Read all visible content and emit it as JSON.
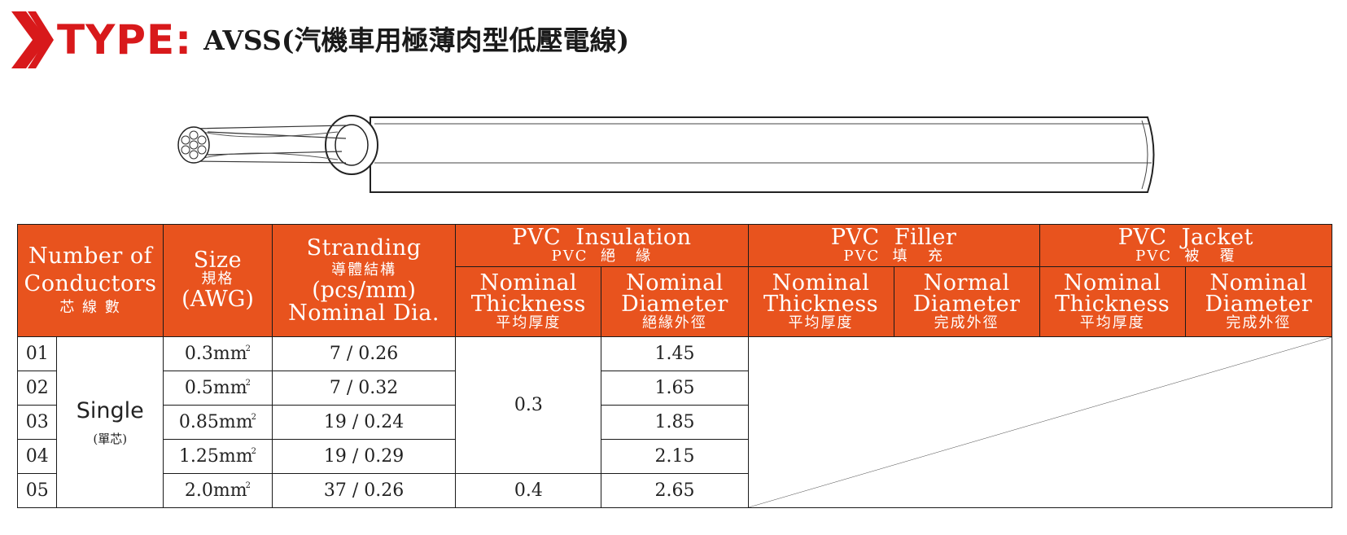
{
  "title": {
    "prefix": "TYPE:",
    "name": "AVSS(汽機車用極薄肉型低壓電線)"
  },
  "colors": {
    "accent_red": "#d8191b",
    "header_orange": "#e8531e"
  },
  "icons": {
    "title_marker": "double-chevron-icon",
    "cable": "cable-illustration"
  },
  "table": {
    "headers": {
      "conductors": {
        "en_line1": "Number of",
        "en_line2": "Conductors",
        "cn": "芯 線 數"
      },
      "size": {
        "en": "Size",
        "cn": "規格",
        "unit": "(AWG)"
      },
      "stranding": {
        "en": "Stranding",
        "cn": "導體結構",
        "unit": "(pcs/mm)",
        "sub": "Nominal Dia."
      },
      "insulation": {
        "en": "PVC  Insulation",
        "cn": "PVC  絕   緣"
      },
      "filler": {
        "en": "PVC  Filler",
        "cn": "PVC  填   充"
      },
      "jacket": {
        "en": "PVC  Jacket",
        "cn": "PVC  被   覆"
      },
      "sub": {
        "ins_thick": {
          "l1": "Nominal",
          "l2": "Thickness",
          "cn": "平均厚度"
        },
        "ins_dia": {
          "l1": "Nominal",
          "l2": "Diameter",
          "cn": "絕緣外徑"
        },
        "fil_thick": {
          "l1": "Nominal",
          "l2": "Thickness",
          "cn": "平均厚度"
        },
        "fil_dia": {
          "l1": "Normal",
          "l2": "Diameter",
          "cn": "完成外徑"
        },
        "jac_thick": {
          "l1": "Nominal",
          "l2": "Thickness",
          "cn": "平均厚度"
        },
        "jac_dia": {
          "l1": "Nominal",
          "l2": "Diameter",
          "cn": "完成外徑"
        }
      }
    },
    "single": {
      "en": "Single",
      "cn": "(單芯)"
    },
    "squared": "2",
    "rows": [
      {
        "num": "01",
        "size": "0.3mm",
        "stranding": "7 / 0.26",
        "diameter": "1.45"
      },
      {
        "num": "02",
        "size": "0.5mm",
        "stranding": "7 / 0.32",
        "diameter": "1.65"
      },
      {
        "num": "03",
        "size": "0.85mm",
        "stranding": "19 / 0.24",
        "diameter": "1.85"
      },
      {
        "num": "04",
        "size": "1.25mm",
        "stranding": "19 / 0.29",
        "diameter": "2.15"
      },
      {
        "num": "05",
        "size": "2.0mm",
        "stranding": "37 / 0.26",
        "diameter": "2.65"
      }
    ],
    "thickness_group1": "0.3",
    "thickness_group2": "0.4"
  }
}
